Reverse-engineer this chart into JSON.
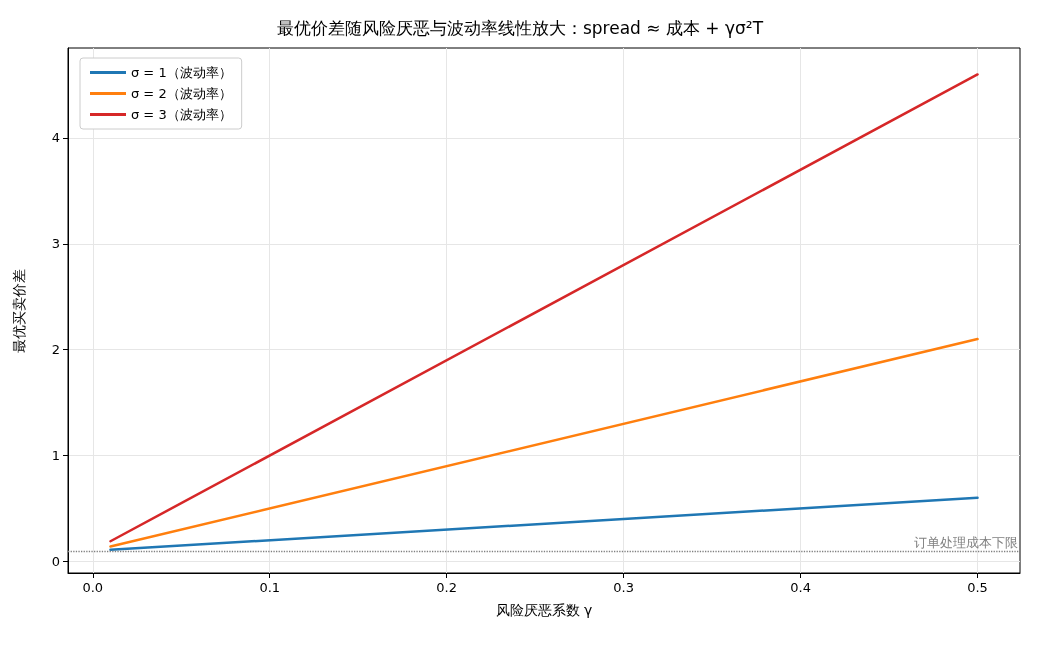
{
  "chart_data": {
    "type": "line",
    "title": "最优价差随风险厌恶与波动率线性放大：spread ≈ 成本 + γσ²T",
    "xlabel": "风险厌恶系数 γ",
    "ylabel": "最优买卖价差",
    "x": [
      0.01,
      0.5
    ],
    "series": [
      {
        "name": "σ = 1（波动率）",
        "color": "#1f77b4",
        "values": [
          0.11,
          0.6
        ]
      },
      {
        "name": "σ = 2（波动率）",
        "color": "#ff7f0e",
        "values": [
          0.14,
          2.1
        ]
      },
      {
        "name": "σ = 3（波动率）",
        "color": "#d62728",
        "values": [
          0.19,
          4.6
        ]
      }
    ],
    "xlim": [
      -0.014,
      0.524
    ],
    "xticks": [
      {
        "value": 0,
        "label": "0.0"
      },
      0.1,
      0.2,
      0.3,
      0.4,
      0.5
    ],
    "ylim": [
      -0.11,
      4.85
    ],
    "yticks": [
      0,
      1,
      2,
      3,
      4
    ],
    "ref_lines": [
      {
        "axis": "y",
        "value": 0.1,
        "label": "订单处理成本下限",
        "color": "#808080",
        "line_style": "dotted"
      }
    ],
    "grid": true,
    "legend": "top left",
    "marker": "none",
    "line_style": "solid"
  }
}
